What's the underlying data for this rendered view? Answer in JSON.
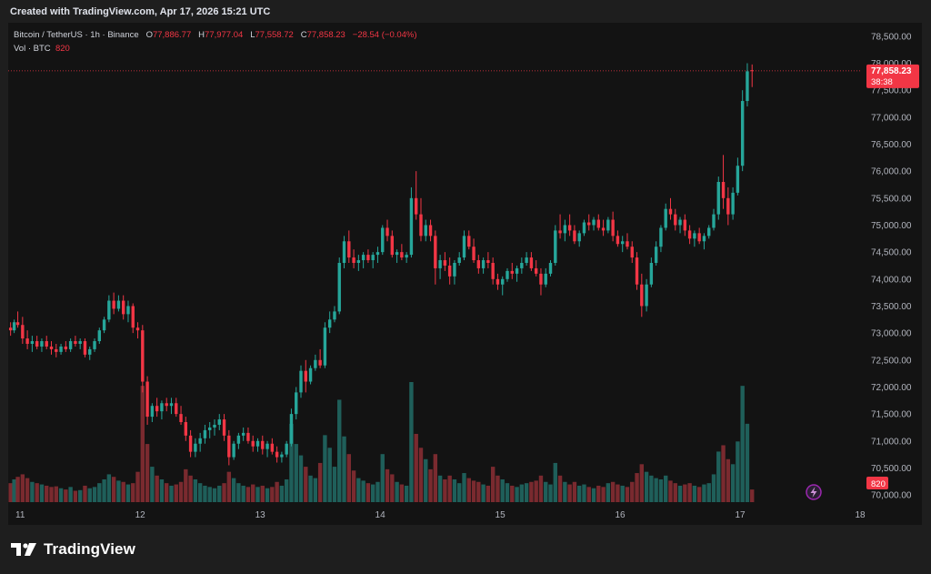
{
  "caption": "Created with TradingView.com, Apr 17, 2026 15:21 UTC",
  "legend": {
    "symbol": "Bitcoin / TetherUS · 1h · Binance",
    "open_label": "O",
    "open": "77,886.77",
    "high_label": "H",
    "high": "77,977.04",
    "low_label": "L",
    "low": "77,558.72",
    "close_label": "C",
    "close": "77,858.23",
    "change": "−28.54 (−0.04%)",
    "vol_label": "Vol · BTC",
    "vol_value": "820"
  },
  "price_tag": {
    "price": "77,858.23",
    "countdown": "38:38"
  },
  "vol_tag": "820",
  "brand": "TradingView",
  "colors": {
    "up": "#26a69a",
    "down": "#f23645",
    "vol_up": "#1f5f5a",
    "vol_down": "#7a2a2f",
    "grid": "#222222",
    "bg": "#131313",
    "text": "#b2b5be"
  },
  "chart_data": {
    "type": "candlestick",
    "title": "Bitcoin / TetherUS · 1h · Binance",
    "x_ticks": [
      "11",
      "12",
      "13",
      "14",
      "15",
      "16",
      "17",
      "18"
    ],
    "y_ticks": [
      70000,
      70500,
      71000,
      71500,
      72000,
      72500,
      73000,
      73500,
      74000,
      74500,
      75000,
      75500,
      76000,
      76500,
      77000,
      77500,
      78000,
      78500
    ],
    "ylim": [
      69850,
      78750
    ],
    "x_day_range": [
      10.9,
      18.0
    ],
    "last_price": 77858.23,
    "grid": false,
    "volume_max": 9500,
    "candles": [
      [
        10.92,
        73100,
        73200,
        72950,
        73050,
        1500
      ],
      [
        10.95,
        73050,
        73250,
        73000,
        73200,
        1800
      ],
      [
        10.98,
        73200,
        73400,
        73100,
        73150,
        2000
      ],
      [
        11.02,
        73150,
        73300,
        72800,
        72900,
        2200
      ],
      [
        11.06,
        72900,
        73050,
        72700,
        72800,
        1900
      ],
      [
        11.1,
        72800,
        72950,
        72650,
        72850,
        1600
      ],
      [
        11.14,
        72850,
        72950,
        72700,
        72750,
        1500
      ],
      [
        11.18,
        72750,
        72900,
        72650,
        72850,
        1400
      ],
      [
        11.22,
        72850,
        72950,
        72700,
        72750,
        1300
      ],
      [
        11.26,
        72750,
        72850,
        72600,
        72700,
        1200
      ],
      [
        11.3,
        72700,
        72800,
        72550,
        72650,
        1250
      ],
      [
        11.34,
        72650,
        72800,
        72600,
        72750,
        1100
      ],
      [
        11.38,
        72750,
        72850,
        72650,
        72700,
        1000
      ],
      [
        11.42,
        72700,
        72900,
        72650,
        72850,
        1200
      ],
      [
        11.46,
        72850,
        72950,
        72750,
        72800,
        900
      ],
      [
        11.5,
        72800,
        72900,
        72700,
        72850,
        950
      ],
      [
        11.54,
        72850,
        72900,
        72550,
        72600,
        1300
      ],
      [
        11.58,
        72600,
        72750,
        72500,
        72700,
        1100
      ],
      [
        11.62,
        72700,
        72900,
        72650,
        72850,
        1200
      ],
      [
        11.66,
        72850,
        73100,
        72800,
        73050,
        1500
      ],
      [
        11.7,
        73050,
        73300,
        73000,
        73250,
        1800
      ],
      [
        11.74,
        73250,
        73700,
        73200,
        73600,
        2200
      ],
      [
        11.78,
        73600,
        73750,
        73350,
        73450,
        2000
      ],
      [
        11.82,
        73450,
        73700,
        73400,
        73600,
        1700
      ],
      [
        11.86,
        73600,
        73700,
        73250,
        73350,
        1600
      ],
      [
        11.9,
        73350,
        73600,
        73200,
        73500,
        1400
      ],
      [
        11.94,
        73500,
        73550,
        73000,
        73100,
        1500
      ],
      [
        11.98,
        73100,
        73200,
        72900,
        73050,
        2400
      ],
      [
        12.02,
        73050,
        73150,
        71900,
        72100,
        9200
      ],
      [
        12.06,
        72100,
        72200,
        71300,
        71450,
        4600
      ],
      [
        12.1,
        71450,
        71700,
        71350,
        71650,
        2800
      ],
      [
        12.14,
        71650,
        71800,
        71450,
        71550,
        2100
      ],
      [
        12.18,
        71550,
        71750,
        71400,
        71700,
        1800
      ],
      [
        12.22,
        71700,
        71800,
        71550,
        71650,
        1500
      ],
      [
        12.26,
        71650,
        71800,
        71500,
        71700,
        1300
      ],
      [
        12.3,
        71700,
        71800,
        71450,
        71500,
        1400
      ],
      [
        12.34,
        71500,
        71650,
        71300,
        71350,
        1600
      ],
      [
        12.38,
        71350,
        71450,
        71000,
        71100,
        2600
      ],
      [
        12.42,
        71100,
        71200,
        70700,
        70800,
        2100
      ],
      [
        12.46,
        70800,
        71050,
        70700,
        70950,
        1800
      ],
      [
        12.5,
        70950,
        71150,
        70800,
        71050,
        1500
      ],
      [
        12.54,
        71050,
        71300,
        70950,
        71200,
        1300
      ],
      [
        12.58,
        71200,
        71350,
        71050,
        71250,
        1200
      ],
      [
        12.62,
        71250,
        71400,
        71100,
        71300,
        1100
      ],
      [
        12.66,
        71300,
        71500,
        71200,
        71400,
        1300
      ],
      [
        12.7,
        71400,
        71500,
        71000,
        71100,
        1500
      ],
      [
        12.74,
        71100,
        71200,
        70550,
        70700,
        2400
      ],
      [
        12.78,
        70700,
        71000,
        70650,
        70950,
        1900
      ],
      [
        12.82,
        70950,
        71150,
        70850,
        71100,
        1500
      ],
      [
        12.86,
        71100,
        71250,
        71000,
        71150,
        1300
      ],
      [
        12.9,
        71150,
        71250,
        70950,
        71000,
        1200
      ],
      [
        12.94,
        71000,
        71100,
        70800,
        70900,
        1400
      ],
      [
        12.98,
        70900,
        71050,
        70800,
        71000,
        1200
      ],
      [
        13.02,
        71000,
        71100,
        70750,
        70850,
        1300
      ],
      [
        13.06,
        70850,
        71000,
        70700,
        70950,
        1100
      ],
      [
        13.1,
        70950,
        71050,
        70750,
        70800,
        1200
      ],
      [
        13.14,
        70800,
        70900,
        70600,
        70700,
        1600
      ],
      [
        13.18,
        70700,
        70800,
        70600,
        70750,
        1300
      ],
      [
        13.22,
        70750,
        71000,
        70700,
        70950,
        1800
      ],
      [
        13.26,
        70950,
        71600,
        70900,
        71500,
        6200
      ],
      [
        13.3,
        71500,
        72000,
        71400,
        71900,
        4600
      ],
      [
        13.34,
        71900,
        72400,
        71800,
        72300,
        3700
      ],
      [
        13.38,
        72300,
        72500,
        71900,
        72100,
        2800
      ],
      [
        13.42,
        72100,
        72400,
        72050,
        72350,
        2100
      ],
      [
        13.46,
        72350,
        72600,
        72300,
        72500,
        1900
      ],
      [
        13.5,
        72500,
        72700,
        72350,
        72400,
        3100
      ],
      [
        13.54,
        72400,
        73200,
        72350,
        73100,
        5300
      ],
      [
        13.58,
        73100,
        73400,
        73000,
        73250,
        4300
      ],
      [
        13.62,
        73250,
        73500,
        73200,
        73400,
        2800
      ],
      [
        13.66,
        73400,
        74400,
        73350,
        74300,
        8100
      ],
      [
        13.7,
        74300,
        74800,
        74200,
        74700,
        5200
      ],
      [
        13.74,
        74700,
        74900,
        74300,
        74400,
        3800
      ],
      [
        13.78,
        74400,
        74550,
        74200,
        74300,
        2500
      ],
      [
        13.82,
        74300,
        74450,
        74150,
        74350,
        1900
      ],
      [
        13.86,
        74350,
        74500,
        74200,
        74450,
        1700
      ],
      [
        13.9,
        74450,
        74550,
        74300,
        74350,
        1500
      ],
      [
        13.94,
        74350,
        74500,
        74200,
        74450,
        1400
      ],
      [
        13.98,
        74450,
        74600,
        74300,
        74500,
        1600
      ],
      [
        14.02,
        74500,
        75000,
        74450,
        74950,
        3800
      ],
      [
        14.06,
        74950,
        75100,
        74700,
        74800,
        2600
      ],
      [
        14.1,
        74800,
        74900,
        74400,
        74450,
        2200
      ],
      [
        14.14,
        74450,
        74550,
        74300,
        74500,
        1600
      ],
      [
        14.18,
        74500,
        74650,
        74350,
        74400,
        1400
      ],
      [
        14.22,
        74400,
        74500,
        74300,
        74450,
        1300
      ],
      [
        14.26,
        74450,
        75700,
        74400,
        75500,
        9500
      ],
      [
        14.3,
        75500,
        76000,
        75100,
        75200,
        5400
      ],
      [
        14.34,
        75200,
        75500,
        74700,
        74800,
        4300
      ],
      [
        14.38,
        74800,
        75100,
        74700,
        75000,
        3400
      ],
      [
        14.42,
        75000,
        75100,
        74700,
        74800,
        2600
      ],
      [
        14.46,
        74800,
        74900,
        73900,
        74200,
        3800
      ],
      [
        14.5,
        74200,
        74450,
        74000,
        74350,
        2100
      ],
      [
        14.54,
        74350,
        74500,
        74150,
        74250,
        1800
      ],
      [
        14.58,
        74250,
        74400,
        73900,
        74050,
        2100
      ],
      [
        14.62,
        74050,
        74350,
        73900,
        74300,
        1800
      ],
      [
        14.66,
        74300,
        74500,
        74250,
        74400,
        1500
      ],
      [
        14.7,
        74400,
        74900,
        74350,
        74800,
        2300
      ],
      [
        14.74,
        74800,
        74900,
        74550,
        74600,
        1900
      ],
      [
        14.78,
        74600,
        74750,
        74300,
        74350,
        1700
      ],
      [
        14.82,
        74350,
        74450,
        74100,
        74200,
        1600
      ],
      [
        14.86,
        74200,
        74400,
        74100,
        74350,
        1400
      ],
      [
        14.9,
        74350,
        74500,
        74200,
        74300,
        1300
      ],
      [
        14.94,
        74300,
        74400,
        73900,
        74000,
        2800
      ],
      [
        14.98,
        74000,
        74100,
        73800,
        73900,
        2100
      ],
      [
        15.02,
        73900,
        74050,
        73700,
        74000,
        1800
      ],
      [
        15.06,
        74000,
        74200,
        73950,
        74150,
        1500
      ],
      [
        15.1,
        74150,
        74300,
        74000,
        74100,
        1300
      ],
      [
        15.14,
        74100,
        74250,
        73950,
        74200,
        1200
      ],
      [
        15.18,
        74200,
        74400,
        74100,
        74300,
        1400
      ],
      [
        15.22,
        74300,
        74500,
        74250,
        74400,
        1500
      ],
      [
        15.26,
        74400,
        74500,
        74150,
        74200,
        1600
      ],
      [
        15.3,
        74200,
        74350,
        74050,
        74100,
        1700
      ],
      [
        15.34,
        74100,
        74200,
        73700,
        73900,
        2100
      ],
      [
        15.38,
        73900,
        74200,
        73850,
        74100,
        1600
      ],
      [
        15.42,
        74100,
        74350,
        74050,
        74300,
        1400
      ],
      [
        15.46,
        74300,
        75000,
        74250,
        74900,
        3100
      ],
      [
        15.5,
        74900,
        75200,
        74750,
        74850,
        2100
      ],
      [
        15.54,
        74850,
        75100,
        74700,
        75000,
        1600
      ],
      [
        15.58,
        75000,
        75200,
        74800,
        74900,
        1400
      ],
      [
        15.62,
        74900,
        75000,
        74650,
        74700,
        1600
      ],
      [
        15.66,
        74700,
        74900,
        74600,
        74850,
        1300
      ],
      [
        15.7,
        74850,
        75100,
        74800,
        75050,
        1400
      ],
      [
        15.74,
        75050,
        75200,
        74900,
        75000,
        1200
      ],
      [
        15.78,
        75000,
        75150,
        74900,
        75100,
        1100
      ],
      [
        15.82,
        75100,
        75200,
        74900,
        74950,
        1300
      ],
      [
        15.86,
        74950,
        75100,
        74800,
        74900,
        1200
      ],
      [
        15.9,
        74900,
        75150,
        74850,
        75100,
        1500
      ],
      [
        15.94,
        75100,
        75250,
        74700,
        74800,
        1600
      ],
      [
        15.98,
        74800,
        74900,
        74600,
        74650,
        1400
      ],
      [
        16.02,
        74650,
        74800,
        74500,
        74700,
        1300
      ],
      [
        16.06,
        74700,
        74850,
        74550,
        74600,
        1200
      ],
      [
        16.1,
        74600,
        74700,
        74300,
        74400,
        1600
      ],
      [
        16.14,
        74400,
        74500,
        73800,
        73900,
        2300
      ],
      [
        16.18,
        73900,
        74100,
        73300,
        73500,
        3000
      ],
      [
        16.22,
        73500,
        74000,
        73400,
        73900,
        2400
      ],
      [
        16.26,
        73900,
        74400,
        73850,
        74300,
        2100
      ],
      [
        16.3,
        74300,
        74700,
        74250,
        74600,
        1900
      ],
      [
        16.34,
        74600,
        75000,
        74500,
        74950,
        1800
      ],
      [
        16.38,
        74950,
        75400,
        74900,
        75300,
        2100
      ],
      [
        16.42,
        75300,
        75500,
        75100,
        75200,
        1700
      ],
      [
        16.46,
        75200,
        75300,
        74900,
        75000,
        1500
      ],
      [
        16.5,
        75000,
        75150,
        74850,
        75100,
        1300
      ],
      [
        16.54,
        75100,
        75200,
        74800,
        74900,
        1400
      ],
      [
        16.58,
        74900,
        75000,
        74650,
        74750,
        1500
      ],
      [
        16.62,
        74750,
        74900,
        74600,
        74850,
        1300
      ],
      [
        16.66,
        74850,
        74950,
        74650,
        74700,
        1200
      ],
      [
        16.7,
        74700,
        74850,
        74550,
        74800,
        1400
      ],
      [
        16.74,
        74800,
        75000,
        74750,
        74950,
        1500
      ],
      [
        16.78,
        74950,
        75300,
        74900,
        75200,
        2200
      ],
      [
        16.82,
        75200,
        75900,
        75100,
        75800,
        4000
      ],
      [
        16.86,
        75800,
        76300,
        75300,
        75500,
        4500
      ],
      [
        16.9,
        75500,
        75700,
        75000,
        75200,
        3400
      ],
      [
        16.94,
        75200,
        75700,
        75100,
        75600,
        3000
      ],
      [
        16.98,
        75600,
        76250,
        75550,
        76100,
        4800
      ],
      [
        17.02,
        76100,
        77500,
        76000,
        77300,
        9200
      ],
      [
        17.06,
        77300,
        78000,
        77200,
        77850,
        6200
      ],
      [
        17.1,
        77870,
        77977,
        77558,
        77858,
        1000
      ]
    ]
  }
}
